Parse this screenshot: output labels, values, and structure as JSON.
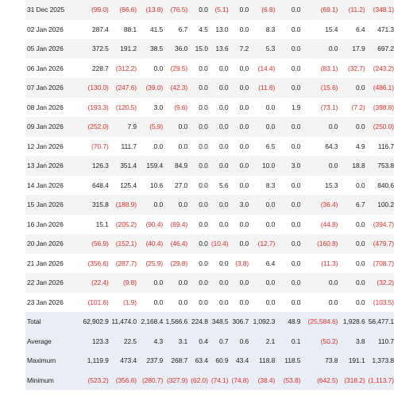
{
  "columns": 15,
  "rows": [
    {
      "label": "31 Dec 2025",
      "cells": [
        "(99.0)",
        "(66.6)",
        "(13.8)",
        "(76.5)",
        "0.0",
        "(5.1)",
        "0.0",
        "(6.8)",
        "0.0",
        "(69.1)",
        "(11.2)",
        "(348.1)"
      ]
    },
    {
      "label": "02 Jan 2026",
      "cells": [
        "287.4",
        "88.1",
        "41.5",
        "6.7",
        "4.5",
        "13.0",
        "0.0",
        "8.3",
        "0.0",
        "15.4",
        "6.4",
        "471.3"
      ]
    },
    {
      "label": "05 Jan 2026",
      "cells": [
        "372.5",
        "191.2",
        "38.5",
        "36.0",
        "15.0",
        "13.6",
        "7.2",
        "5.3",
        "0.0",
        "0.0",
        "17.9",
        "697.2"
      ]
    },
    {
      "label": "06 Jan 2026",
      "cells": [
        "228.7",
        "(312.2)",
        "0.0",
        "(29.5)",
        "0.0",
        "0.0",
        "0.0",
        "(14.4)",
        "0.0",
        "(83.1)",
        "(32.7)",
        "(243.2)"
      ]
    },
    {
      "label": "07 Jan 2026",
      "cells": [
        "(130.0)",
        "(247.6)",
        "(39.0)",
        "(42.3)",
        "0.0",
        "0.0",
        "0.0",
        "(11.6)",
        "0.0",
        "(15.6)",
        "0.0",
        "(486.1)"
      ]
    },
    {
      "label": "08 Jan 2026",
      "cells": [
        "(193.3)",
        "(120.5)",
        "3.0",
        "(9.6)",
        "0.0",
        "0.0",
        "0.0",
        "0.0",
        "1.9",
        "(73.1)",
        "(7.2)",
        "(398.8)"
      ]
    },
    {
      "label": "09 Jan 2026",
      "cells": [
        "(252.0)",
        "7.9",
        "(5.9)",
        "0.0",
        "0.0",
        "0.0",
        "0.0",
        "0.0",
        "0.0",
        "0.0",
        "0.0",
        "(250.0)"
      ]
    },
    {
      "label": "12 Jan 2026",
      "cells": [
        "(70.7)",
        "111.7",
        "0.0",
        "0.0",
        "0.0",
        "0.0",
        "0.0",
        "6.5",
        "0.0",
        "64.3",
        "4.9",
        "116.7"
      ]
    },
    {
      "label": "13 Jan 2026",
      "cells": [
        "126.3",
        "351.4",
        "159.4",
        "84.9",
        "0.0",
        "0.0",
        "0.0",
        "10.0",
        "3.0",
        "0.0",
        "18.8",
        "753.8"
      ]
    },
    {
      "label": "14 Jan 2026",
      "cells": [
        "648.4",
        "125.4",
        "10.6",
        "27.0",
        "0.0",
        "5.6",
        "0.0",
        "8.3",
        "0.0",
        "15.3",
        "0.0",
        "840.6"
      ]
    },
    {
      "label": "15 Jan 2026",
      "cells": [
        "315.8",
        "(188.9)",
        "0.0",
        "0.0",
        "0.0",
        "0.0",
        "3.0",
        "0.0",
        "0.0",
        "(36.4)",
        "6.7",
        "100.2"
      ]
    },
    {
      "label": "16 Jan 2026",
      "cells": [
        "15.1",
        "(205.2)",
        "(90.4)",
        "(69.4)",
        "0.0",
        "0.0",
        "0.0",
        "0.0",
        "0.0",
        "(44.8)",
        "0.0",
        "(394.7)"
      ]
    },
    {
      "label": "20 Jan 2026",
      "cells": [
        "(56.9)",
        "(152.1)",
        "(40.4)",
        "(46.4)",
        "0.0",
        "(10.4)",
        "0.0",
        "(12.7)",
        "0.0",
        "(160.8)",
        "0.0",
        "(479.7)"
      ]
    },
    {
      "label": "21 Jan 2026",
      "cells": [
        "(356.6)",
        "(287.7)",
        "(25.9)",
        "(29.8)",
        "0.0",
        "0.0",
        "(3.8)",
        "6.4",
        "0.0",
        "(11.3)",
        "0.0",
        "(708.7)"
      ]
    },
    {
      "label": "22 Jan 2026",
      "cells": [
        "(22.4)",
        "(9.8)",
        "0.0",
        "0.0",
        "0.0",
        "0.0",
        "0.0",
        "0.0",
        "0.0",
        "0.0",
        "0.0",
        "(32.2)"
      ]
    },
    {
      "label": "23 Jan 2026",
      "cells": [
        "(101.6)",
        "(1.9)",
        "0.0",
        "0.0",
        "0.0",
        "0.0",
        "0.0",
        "0.0",
        "0.0",
        "0.0",
        "0.0",
        "(103.5)"
      ]
    }
  ],
  "summary": [
    {
      "label": "Total",
      "cells": [
        "62,902.9",
        "11,474.0",
        "2,168.4",
        "1,566.6",
        "224.8",
        "348.5",
        "306.7",
        "1,092.3",
        "48.9",
        "(25,584.6)",
        "1,928.6",
        "56,477.1"
      ]
    },
    {
      "label": "Average",
      "cells": [
        "123.3",
        "22.5",
        "4.3",
        "3.1",
        "0.4",
        "0.7",
        "0.6",
        "2.1",
        "0.1",
        "(50.2)",
        "3.8",
        "110.7"
      ]
    },
    {
      "label": "Maximum",
      "cells": [
        "1,119.9",
        "473.4",
        "237.9",
        "268.7",
        "63.4",
        "60.9",
        "43.4",
        "118.8",
        "118.5",
        "73.8",
        "191.1",
        "1,373.8"
      ]
    },
    {
      "label": "Minimum",
      "cells": [
        "(523.2)",
        "(356.6)",
        "(280.7)",
        "(327.9)",
        "(62.0)",
        "(74.1)",
        "(74.8)",
        "(38.4)",
        "(53.8)",
        "(642.5)",
        "(318.2)",
        "(1,113.7)"
      ]
    }
  ],
  "colors": {
    "negative": "#e0302a",
    "summary_bg": "#e9edf5",
    "alt_row_bg": "#f4f4f4"
  }
}
